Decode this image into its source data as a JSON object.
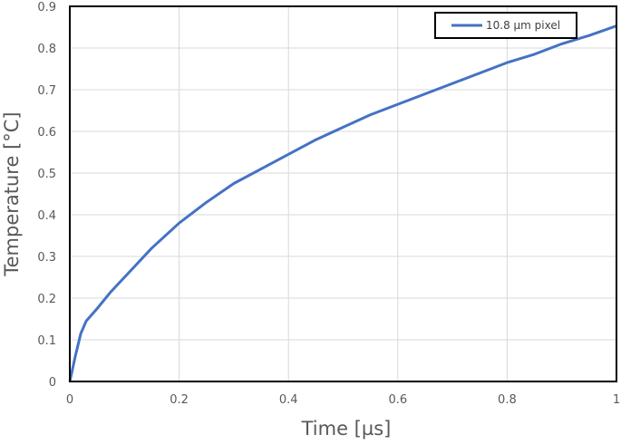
{
  "chart_data": {
    "type": "line",
    "title": "",
    "xlabel": "Time [µs]",
    "ylabel": "Temperature [°C]",
    "xlim": [
      0,
      1
    ],
    "ylim": [
      0,
      0.9
    ],
    "xticks": [
      "0",
      "0.2",
      "0.4",
      "0.6",
      "0.8",
      "1"
    ],
    "yticks": [
      "0",
      "0.1",
      "0.2",
      "0.3",
      "0.4",
      "0.5",
      "0.6",
      "0.7",
      "0.8",
      "0.9"
    ],
    "grid": true,
    "legend_position": "top-right",
    "series": [
      {
        "name": "10.8 µm pixel",
        "color": "#4472C4",
        "x": [
          0,
          0.01,
          0.02,
          0.03,
          0.05,
          0.075,
          0.1,
          0.15,
          0.2,
          0.25,
          0.3,
          0.35,
          0.4,
          0.45,
          0.5,
          0.55,
          0.6,
          0.65,
          0.7,
          0.75,
          0.8,
          0.85,
          0.9,
          0.95,
          1.0
        ],
        "y": [
          0,
          0.06,
          0.115,
          0.145,
          0.175,
          0.215,
          0.25,
          0.32,
          0.38,
          0.43,
          0.475,
          0.51,
          0.545,
          0.58,
          0.61,
          0.64,
          0.665,
          0.69,
          0.715,
          0.74,
          0.765,
          0.785,
          0.81,
          0.83,
          0.853
        ]
      }
    ]
  },
  "legend": {
    "label": "10.8 µm pixel"
  },
  "axes": {
    "x_title": "Time [µs]",
    "y_title": "Temperature [°C]"
  }
}
